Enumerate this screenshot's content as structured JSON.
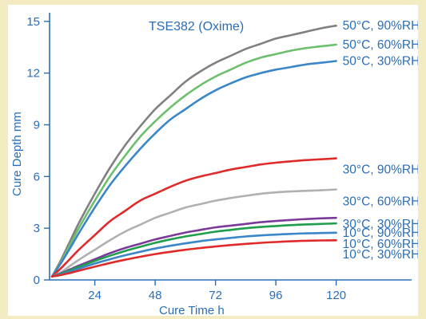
{
  "chart_data": {
    "type": "line",
    "title": "TSE382 (Oxime)",
    "xlabel": "Cure Time  h",
    "ylabel": "Cure Depth  mm",
    "xlim": [
      6,
      150
    ],
    "ylim": [
      0,
      15.5
    ],
    "xticks": [
      24,
      48,
      72,
      96,
      120
    ],
    "xtick_labels": [
      "24",
      "48",
      "72",
      "96",
      "120"
    ],
    "yticks": [
      0,
      3,
      6,
      9,
      12,
      15
    ],
    "ytick_labels": [
      "0",
      "3",
      "6",
      "9",
      "12",
      "15"
    ],
    "grid": false,
    "legend": "labels at right end of each curve",
    "x": [
      7,
      10,
      14,
      18,
      24,
      30,
      36,
      42,
      48,
      54,
      60,
      66,
      72,
      78,
      84,
      90,
      96,
      102,
      108,
      114,
      120
    ],
    "series": [
      {
        "name": "50°C, 90%RH",
        "color": "#808080",
        "values": [
          0.2,
          1.0,
          2.2,
          3.4,
          5.0,
          6.5,
          7.8,
          8.9,
          9.9,
          10.7,
          11.5,
          12.1,
          12.6,
          13.0,
          13.4,
          13.7,
          14.0,
          14.2,
          14.4,
          14.6,
          14.75
        ]
      },
      {
        "name": "50°C, 60%RH",
        "color": "#6cbf6c",
        "values": [
          0.2,
          0.9,
          2.0,
          3.1,
          4.6,
          6.0,
          7.2,
          8.3,
          9.2,
          10.0,
          10.7,
          11.3,
          11.8,
          12.2,
          12.6,
          12.9,
          13.1,
          13.3,
          13.45,
          13.55,
          13.65
        ]
      },
      {
        "name": "50°C, 30%RH",
        "color": "#3a86c8",
        "values": [
          0.2,
          0.85,
          1.8,
          2.8,
          4.2,
          5.5,
          6.6,
          7.6,
          8.5,
          9.3,
          9.9,
          10.5,
          11.0,
          11.4,
          11.75,
          12.0,
          12.2,
          12.35,
          12.5,
          12.6,
          12.7
        ]
      },
      {
        "name": "30°C, 90%RH",
        "color": "#e02a2a",
        "values": [
          0.2,
          0.6,
          1.2,
          1.8,
          2.6,
          3.4,
          4.0,
          4.6,
          5.0,
          5.4,
          5.75,
          6.0,
          6.2,
          6.4,
          6.55,
          6.7,
          6.8,
          6.88,
          6.95,
          7.0,
          7.05
        ]
      },
      {
        "name": "30°C, 60%RH",
        "color": "#b0b0b0",
        "values": [
          0.2,
          0.4,
          0.8,
          1.2,
          1.75,
          2.3,
          2.8,
          3.2,
          3.6,
          3.9,
          4.2,
          4.4,
          4.6,
          4.75,
          4.88,
          5.0,
          5.08,
          5.13,
          5.17,
          5.2,
          5.25
        ]
      },
      {
        "name": "30°C, 30%RH",
        "color": "#7b3a99",
        "values": [
          0.2,
          0.35,
          0.6,
          0.85,
          1.2,
          1.55,
          1.85,
          2.1,
          2.35,
          2.55,
          2.75,
          2.9,
          3.05,
          3.15,
          3.25,
          3.35,
          3.42,
          3.48,
          3.53,
          3.57,
          3.6
        ]
      },
      {
        "name": "10°C, 90%RH",
        "color": "#1e9e4a",
        "values": [
          0.2,
          0.33,
          0.55,
          0.78,
          1.1,
          1.4,
          1.68,
          1.92,
          2.15,
          2.35,
          2.52,
          2.66,
          2.8,
          2.9,
          3.0,
          3.07,
          3.13,
          3.18,
          3.22,
          3.25,
          3.28
        ]
      },
      {
        "name": "10°C, 60%RH",
        "color": "#3a86c8",
        "values": [
          0.2,
          0.3,
          0.48,
          0.67,
          0.95,
          1.2,
          1.43,
          1.63,
          1.82,
          1.98,
          2.12,
          2.25,
          2.35,
          2.44,
          2.52,
          2.58,
          2.63,
          2.67,
          2.7,
          2.72,
          2.74
        ]
      },
      {
        "name": "10°C, 30%RH",
        "color": "#e02a2a",
        "values": [
          0.2,
          0.27,
          0.4,
          0.55,
          0.77,
          0.98,
          1.17,
          1.34,
          1.5,
          1.63,
          1.75,
          1.85,
          1.94,
          2.02,
          2.09,
          2.15,
          2.2,
          2.24,
          2.27,
          2.29,
          2.3
        ]
      }
    ],
    "label_y": [
      14.75,
      13.65,
      12.7,
      6.4,
      4.55,
      3.25,
      2.72,
      2.08,
      1.48
    ]
  }
}
